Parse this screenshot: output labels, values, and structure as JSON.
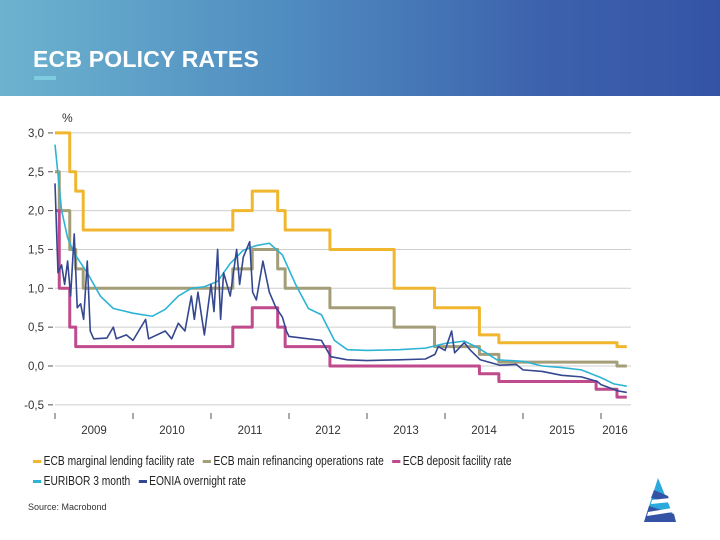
{
  "header": {
    "title": "ECB POLICY RATES"
  },
  "source": "Source: Macrobond",
  "chart_data": {
    "type": "line",
    "title": "",
    "ylabel": "%",
    "xlabel": "",
    "ylim": [
      -0.5,
      3.0
    ],
    "yticks": [
      "3,0",
      "2,5",
      "2,0",
      "1,5",
      "1,0",
      "0,5",
      "0,0",
      "-0,5"
    ],
    "ytick_values": [
      3.0,
      2.5,
      2.0,
      1.5,
      1.0,
      0.5,
      0.0,
      -0.5
    ],
    "xlim": [
      "2009-01-01",
      "2016-05-01"
    ],
    "xticks": [
      "2009",
      "2010",
      "2011",
      "2012",
      "2013",
      "2014",
      "2015",
      "2016"
    ],
    "grid": true,
    "legend_position": "bottom",
    "series": [
      {
        "name": "ECB marginal lending facility rate",
        "color": "#f0b62e",
        "step": true,
        "points": [
          [
            "2009-01-01",
            3.0
          ],
          [
            "2009-03-11",
            2.5
          ],
          [
            "2009-04-08",
            2.25
          ],
          [
            "2009-05-13",
            1.75
          ],
          [
            "2011-04-13",
            2.0
          ],
          [
            "2011-07-13",
            2.25
          ],
          [
            "2011-11-09",
            2.0
          ],
          [
            "2011-12-14",
            1.75
          ],
          [
            "2012-07-11",
            1.5
          ],
          [
            "2013-05-08",
            1.0
          ],
          [
            "2013-11-13",
            0.75
          ],
          [
            "2014-06-11",
            0.4
          ],
          [
            "2014-09-10",
            0.3
          ],
          [
            "2016-03-16",
            0.25
          ],
          [
            "2016-05-01",
            0.25
          ]
        ]
      },
      {
        "name": "ECB main refinancing operations rate",
        "color": "#a39e78",
        "step": true,
        "points": [
          [
            "2009-01-01",
            2.5
          ],
          [
            "2009-01-21",
            2.0
          ],
          [
            "2009-03-11",
            1.5
          ],
          [
            "2009-04-08",
            1.25
          ],
          [
            "2009-05-13",
            1.0
          ],
          [
            "2011-04-13",
            1.25
          ],
          [
            "2011-07-13",
            1.5
          ],
          [
            "2011-11-09",
            1.25
          ],
          [
            "2011-12-14",
            1.0
          ],
          [
            "2012-07-11",
            0.75
          ],
          [
            "2013-05-08",
            0.5
          ],
          [
            "2013-11-13",
            0.25
          ],
          [
            "2014-06-11",
            0.15
          ],
          [
            "2014-09-10",
            0.05
          ],
          [
            "2016-03-16",
            0.0
          ],
          [
            "2016-05-01",
            0.0
          ]
        ]
      },
      {
        "name": "ECB deposit facility rate",
        "color": "#bf4a8c",
        "step": true,
        "points": [
          [
            "2009-01-01",
            2.0
          ],
          [
            "2009-01-21",
            1.0
          ],
          [
            "2009-03-11",
            0.5
          ],
          [
            "2009-04-08",
            0.25
          ],
          [
            "2011-04-13",
            0.5
          ],
          [
            "2011-07-13",
            0.75
          ],
          [
            "2011-11-09",
            0.5
          ],
          [
            "2011-12-14",
            0.25
          ],
          [
            "2012-07-11",
            0.0
          ],
          [
            "2014-06-11",
            -0.1
          ],
          [
            "2014-09-10",
            -0.2
          ],
          [
            "2015-12-09",
            -0.3
          ],
          [
            "2016-03-16",
            -0.4
          ],
          [
            "2016-05-01",
            -0.4
          ]
        ]
      },
      {
        "name": "EURIBOR 3 month",
        "color": "#2db4d4",
        "step": false,
        "points": [
          [
            "2009-01-01",
            2.85
          ],
          [
            "2009-02-01",
            2.0
          ],
          [
            "2009-03-01",
            1.65
          ],
          [
            "2009-04-01",
            1.45
          ],
          [
            "2009-06-01",
            1.2
          ],
          [
            "2009-08-01",
            0.9
          ],
          [
            "2009-10-01",
            0.74
          ],
          [
            "2010-01-01",
            0.68
          ],
          [
            "2010-04-01",
            0.64
          ],
          [
            "2010-06-01",
            0.73
          ],
          [
            "2010-08-01",
            0.9
          ],
          [
            "2010-10-01",
            1.0
          ],
          [
            "2010-12-01",
            1.02
          ],
          [
            "2011-02-01",
            1.09
          ],
          [
            "2011-04-01",
            1.32
          ],
          [
            "2011-06-01",
            1.49
          ],
          [
            "2011-08-01",
            1.55
          ],
          [
            "2011-10-01",
            1.58
          ],
          [
            "2011-12-01",
            1.43
          ],
          [
            "2012-02-01",
            1.05
          ],
          [
            "2012-04-01",
            0.74
          ],
          [
            "2012-06-01",
            0.66
          ],
          [
            "2012-08-01",
            0.33
          ],
          [
            "2012-10-01",
            0.21
          ],
          [
            "2013-01-01",
            0.2
          ],
          [
            "2013-06-01",
            0.21
          ],
          [
            "2013-10-01",
            0.23
          ],
          [
            "2014-01-01",
            0.29
          ],
          [
            "2014-04-01",
            0.32
          ],
          [
            "2014-06-01",
            0.24
          ],
          [
            "2014-09-01",
            0.08
          ],
          [
            "2015-01-01",
            0.06
          ],
          [
            "2015-04-01",
            0.0
          ],
          [
            "2015-07-01",
            -0.02
          ],
          [
            "2015-10-01",
            -0.05
          ],
          [
            "2016-01-01",
            -0.15
          ],
          [
            "2016-03-01",
            -0.23
          ],
          [
            "2016-05-01",
            -0.26
          ]
        ]
      },
      {
        "name": "EONIA overnight rate",
        "color": "#34478f",
        "step": false,
        "points": [
          [
            "2009-01-01",
            2.35
          ],
          [
            "2009-01-15",
            1.2
          ],
          [
            "2009-02-01",
            1.3
          ],
          [
            "2009-02-15",
            1.05
          ],
          [
            "2009-03-01",
            1.35
          ],
          [
            "2009-03-15",
            0.9
          ],
          [
            "2009-04-01",
            1.7
          ],
          [
            "2009-04-15",
            0.75
          ],
          [
            "2009-05-01",
            0.8
          ],
          [
            "2009-05-15",
            0.6
          ],
          [
            "2009-06-01",
            1.35
          ],
          [
            "2009-06-15",
            0.45
          ],
          [
            "2009-07-01",
            0.35
          ],
          [
            "2009-09-01",
            0.36
          ],
          [
            "2009-10-01",
            0.5
          ],
          [
            "2009-10-15",
            0.35
          ],
          [
            "2009-12-01",
            0.4
          ],
          [
            "2010-01-01",
            0.33
          ],
          [
            "2010-03-01",
            0.6
          ],
          [
            "2010-03-15",
            0.35
          ],
          [
            "2010-06-01",
            0.45
          ],
          [
            "2010-07-01",
            0.35
          ],
          [
            "2010-08-01",
            0.55
          ],
          [
            "2010-09-01",
            0.45
          ],
          [
            "2010-10-01",
            0.9
          ],
          [
            "2010-10-15",
            0.6
          ],
          [
            "2010-11-01",
            0.95
          ],
          [
            "2010-12-01",
            0.4
          ],
          [
            "2011-01-01",
            1.05
          ],
          [
            "2011-01-15",
            0.7
          ],
          [
            "2011-02-01",
            1.5
          ],
          [
            "2011-02-15",
            0.6
          ],
          [
            "2011-03-01",
            1.2
          ],
          [
            "2011-04-01",
            0.9
          ],
          [
            "2011-05-01",
            1.5
          ],
          [
            "2011-05-15",
            1.05
          ],
          [
            "2011-06-01",
            1.4
          ],
          [
            "2011-07-01",
            1.6
          ],
          [
            "2011-07-15",
            0.95
          ],
          [
            "2011-08-01",
            0.85
          ],
          [
            "2011-09-01",
            1.35
          ],
          [
            "2011-10-01",
            0.95
          ],
          [
            "2011-11-01",
            0.75
          ],
          [
            "2011-12-01",
            0.63
          ],
          [
            "2011-12-20",
            0.45
          ],
          [
            "2012-01-01",
            0.38
          ],
          [
            "2012-04-01",
            0.35
          ],
          [
            "2012-06-01",
            0.33
          ],
          [
            "2012-07-15",
            0.12
          ],
          [
            "2012-10-01",
            0.08
          ],
          [
            "2013-01-01",
            0.07
          ],
          [
            "2013-06-01",
            0.08
          ],
          [
            "2013-10-01",
            0.09
          ],
          [
            "2013-11-15",
            0.15
          ],
          [
            "2013-12-01",
            0.25
          ],
          [
            "2014-01-01",
            0.2
          ],
          [
            "2014-02-01",
            0.45
          ],
          [
            "2014-02-15",
            0.17
          ],
          [
            "2014-04-01",
            0.3
          ],
          [
            "2014-05-01",
            0.2
          ],
          [
            "2014-06-15",
            0.08
          ],
          [
            "2014-09-15",
            0.01
          ],
          [
            "2014-12-01",
            0.02
          ],
          [
            "2015-01-01",
            -0.05
          ],
          [
            "2015-04-01",
            -0.07
          ],
          [
            "2015-07-01",
            -0.12
          ],
          [
            "2015-10-01",
            -0.14
          ],
          [
            "2015-12-15",
            -0.2
          ],
          [
            "2016-01-01",
            -0.24
          ],
          [
            "2016-03-20",
            -0.32
          ],
          [
            "2016-05-01",
            -0.34
          ]
        ]
      }
    ]
  }
}
